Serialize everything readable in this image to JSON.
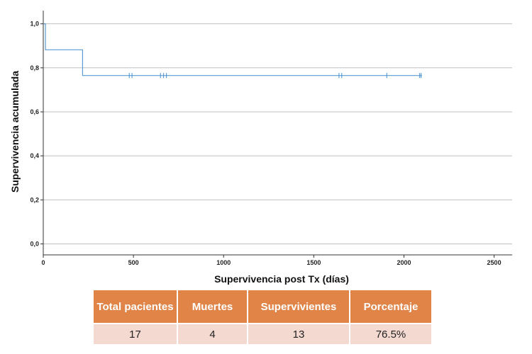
{
  "chart_data": {
    "type": "line",
    "xlabel": "Supervivencia post Tx (días)",
    "ylabel": "Supervivencia acumulada",
    "xlim": [
      0,
      2600
    ],
    "ylim": [
      -0.05,
      1.06
    ],
    "x_ticks": [
      0,
      500,
      1000,
      1500,
      2000,
      2500
    ],
    "x_tick_labels": [
      "0",
      "500",
      "1000",
      "1500",
      "2000",
      "2500"
    ],
    "y_ticks": [
      0.0,
      0.2,
      0.4,
      0.6,
      0.8,
      1.0
    ],
    "y_tick_labels": [
      "0,0",
      "0,2",
      "0,4",
      "0,6",
      "0,8",
      "1,0"
    ],
    "grid": "horizontal",
    "series": [
      {
        "step_points": [
          {
            "x": 0,
            "y": 1.0
          },
          {
            "x": 12,
            "y": 0.882
          },
          {
            "x": 218,
            "y": 0.765
          },
          {
            "x": 2100,
            "y": 0.765
          }
        ],
        "censored_x": [
          477,
          492,
          650,
          667,
          683,
          1640,
          1655,
          1905,
          2087,
          2095
        ],
        "censored_y": 0.765
      }
    ],
    "colors": {
      "line": "#5a9bd5",
      "grid": "#c0c0c0",
      "axis": "#333333"
    }
  },
  "summary_table": {
    "headers": [
      "Total pacientes",
      "Muertes",
      "Supervivientes",
      "Porcentaje"
    ],
    "values": [
      "17",
      "4",
      "13",
      "76.5%"
    ],
    "colors": {
      "header_bg": "#e08447",
      "row_bg": "#f4d9d0",
      "header_text": "#ffffff"
    }
  }
}
